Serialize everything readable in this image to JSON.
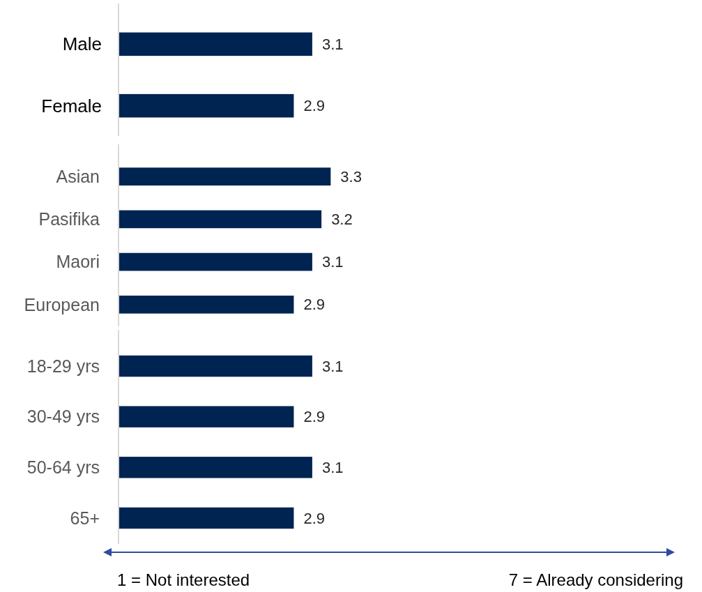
{
  "chart_data": {
    "type": "bar",
    "orientation": "horizontal",
    "categories": [
      "Male",
      "Female",
      "Asian",
      "Pasifika",
      "Maori",
      "European",
      "18-29 yrs",
      "30-49 yrs",
      "50-64 yrs",
      "65+"
    ],
    "values": [
      3.1,
      2.9,
      3.3,
      3.2,
      3.1,
      2.9,
      3.1,
      2.9,
      3.1,
      2.9
    ],
    "color": "#002452",
    "xlim": [
      1,
      7
    ],
    "data_labels": true,
    "tick_labels": "y",
    "annotations": [
      "1 = Not interested",
      "7 = Already considering"
    ]
  }
}
